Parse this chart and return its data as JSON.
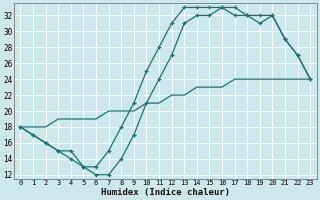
{
  "xlabel": "Humidex (Indice chaleur)",
  "bg_color": "#cce8ec",
  "grid_color": "#ffffff",
  "line_color": "#1e7070",
  "xlim": [
    -0.5,
    23.5
  ],
  "ylim": [
    11.5,
    33.5
  ],
  "xticks": [
    0,
    1,
    2,
    3,
    4,
    5,
    6,
    7,
    8,
    9,
    10,
    11,
    12,
    13,
    14,
    15,
    16,
    17,
    18,
    19,
    20,
    21,
    22,
    23
  ],
  "yticks": [
    12,
    14,
    16,
    18,
    20,
    22,
    24,
    26,
    28,
    30,
    32
  ],
  "line1_x": [
    0,
    1,
    2,
    3,
    4,
    5,
    6,
    7,
    8,
    9,
    10,
    11,
    12,
    13,
    14,
    15,
    16,
    17,
    18,
    19,
    20,
    21,
    22,
    23
  ],
  "line1_y": [
    18,
    17,
    16,
    15,
    15,
    13,
    13,
    15,
    18,
    21,
    25,
    28,
    31,
    33,
    33,
    33,
    33,
    33,
    32,
    32,
    32,
    29,
    27,
    24
  ],
  "line2_x": [
    0,
    1,
    2,
    3,
    4,
    5,
    6,
    7,
    8,
    9,
    10,
    11,
    12,
    13,
    14,
    15,
    16,
    17,
    18,
    19,
    20,
    21,
    22,
    23
  ],
  "line2_y": [
    18,
    17,
    16,
    15,
    14,
    13,
    12,
    12,
    14,
    17,
    21,
    24,
    27,
    31,
    32,
    32,
    33,
    32,
    32,
    31,
    32,
    29,
    27,
    24
  ],
  "line3_x": [
    0,
    1,
    2,
    3,
    4,
    5,
    6,
    7,
    8,
    9,
    10,
    11,
    12,
    13,
    14,
    15,
    16,
    17,
    18,
    19,
    20,
    21,
    22,
    23
  ],
  "line3_y": [
    18,
    18,
    18,
    19,
    19,
    19,
    19,
    20,
    20,
    20,
    21,
    21,
    22,
    22,
    23,
    23,
    23,
    24,
    24,
    24,
    24,
    24,
    24,
    24
  ]
}
